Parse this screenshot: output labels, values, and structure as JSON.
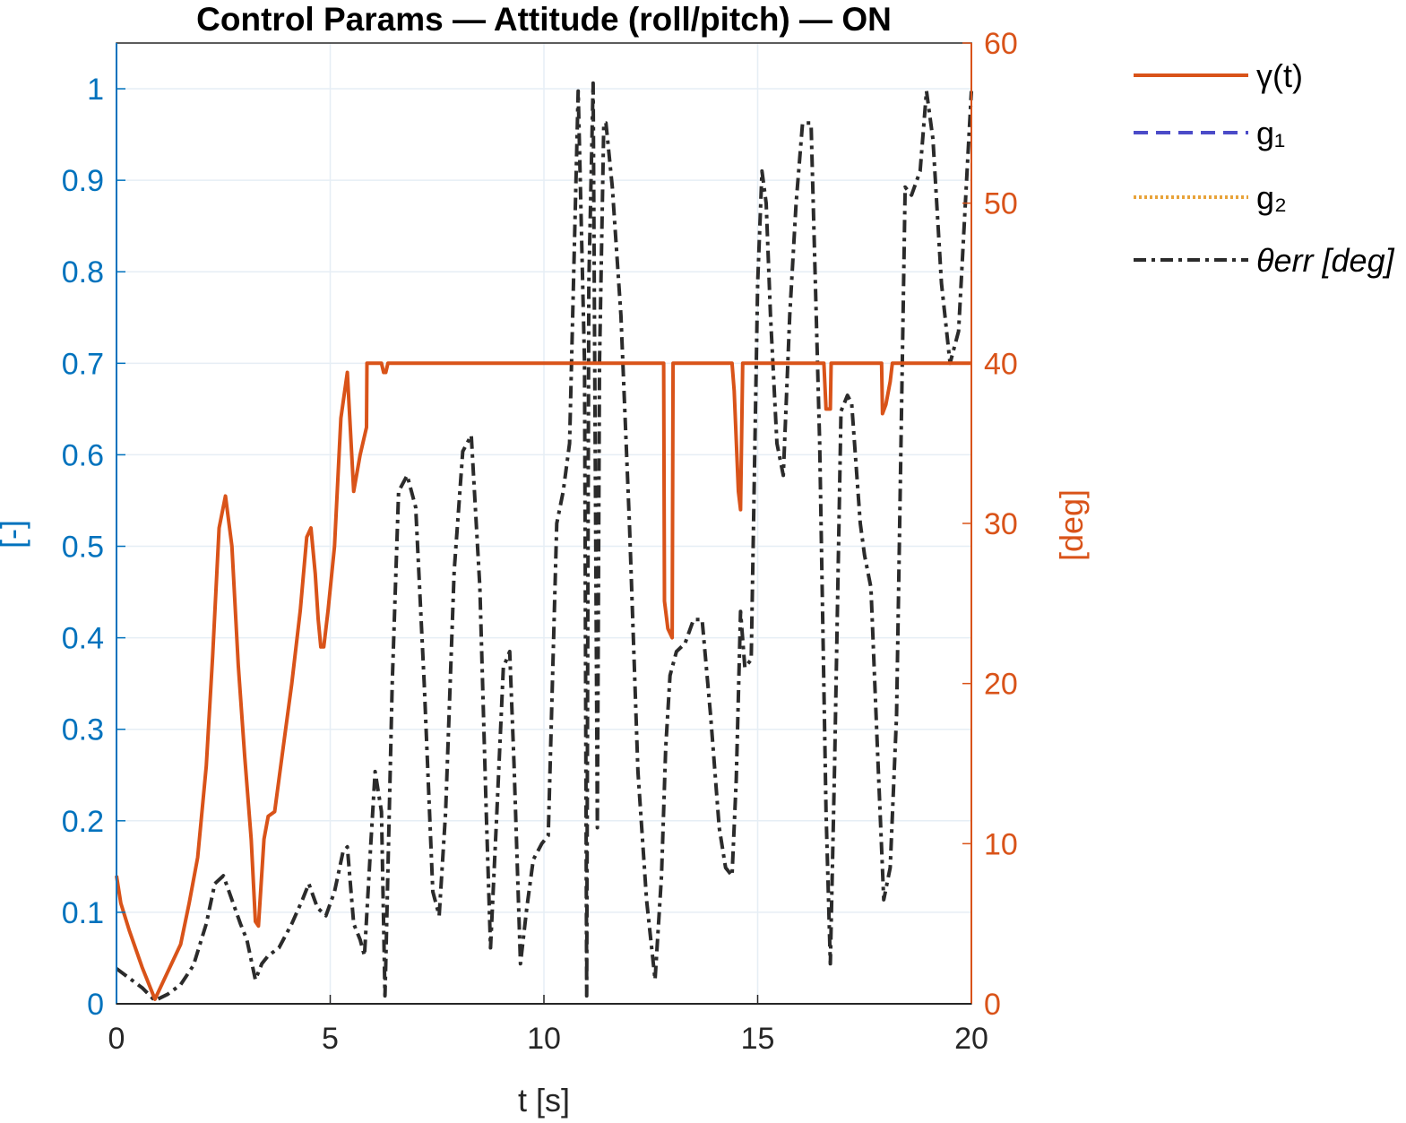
{
  "chart_data": {
    "type": "line",
    "title": "Control Params — Attitude (roll/pitch) — ON",
    "xlabel": "t [s]",
    "ylabel_left": "[-]",
    "ylabel_right": "[deg]",
    "xlim": [
      0,
      20
    ],
    "ylim_left": [
      0,
      1.05
    ],
    "ylim_right": [
      0,
      60
    ],
    "grid": true,
    "legend_position": "outside-right-top",
    "xticks": [
      "0",
      "5",
      "10",
      "15",
      "20"
    ],
    "yticks_left": [
      "0",
      "0.1",
      "0.2",
      "0.3",
      "0.4",
      "0.5",
      "0.6",
      "0.7",
      "0.8",
      "0.9",
      "1"
    ],
    "yticks_right": [
      "0",
      "10",
      "20",
      "30",
      "40",
      "50",
      "60"
    ],
    "colors": {
      "left_axis": "#0072BD",
      "right_axis": "#D95319",
      "gamma": "#D95319",
      "g1": "#4B4BC8",
      "g2": "#E8A33A",
      "theta": "#2B2B2B"
    },
    "series": [
      {
        "name": "γ(t)",
        "axis": "left",
        "style": "solid",
        "x": [
          0,
          0.1,
          0.3,
          0.6,
          0.9,
          1.2,
          1.5,
          1.7,
          1.9,
          2.1,
          2.25,
          2.4,
          2.55,
          2.7,
          2.85,
          3.0,
          3.15,
          3.25,
          3.32,
          3.45,
          3.55,
          3.7,
          3.9,
          4.1,
          4.3,
          4.45,
          4.55,
          4.65,
          4.72,
          4.78,
          4.85,
          4.95,
          5.1,
          5.25,
          5.4,
          5.55,
          5.7,
          5.85,
          5.86,
          6.0,
          6.02,
          6.1,
          6.2,
          6.25,
          6.3,
          6.35,
          12.8,
          12.82,
          12.9,
          13.0,
          13.02,
          13.08,
          13.1,
          14.4,
          14.45,
          14.55,
          14.6,
          14.65,
          16.55,
          16.6,
          16.7,
          16.72,
          17.9,
          17.92,
          18.0,
          18.1,
          18.15,
          20
        ],
        "values": [
          0.14,
          0.11,
          0.08,
          0.04,
          0.005,
          0.035,
          0.065,
          0.11,
          0.16,
          0.26,
          0.38,
          0.52,
          0.555,
          0.5,
          0.37,
          0.27,
          0.18,
          0.09,
          0.085,
          0.18,
          0.205,
          0.21,
          0.28,
          0.35,
          0.43,
          0.51,
          0.52,
          0.47,
          0.42,
          0.39,
          0.39,
          0.43,
          0.5,
          0.64,
          0.69,
          0.56,
          0.6,
          0.63,
          0.7,
          0.7,
          0.7,
          0.7,
          0.7,
          0.69,
          0.69,
          0.7,
          0.7,
          0.44,
          0.41,
          0.4,
          0.7,
          0.7,
          0.7,
          0.7,
          0.67,
          0.56,
          0.54,
          0.7,
          0.7,
          0.65,
          0.65,
          0.7,
          0.7,
          0.645,
          0.655,
          0.68,
          0.7,
          0.7
        ]
      },
      {
        "name": "g₁",
        "axis": "left",
        "style": "dashed",
        "x": [],
        "values": []
      },
      {
        "name": "g₂",
        "axis": "left",
        "style": "dotted",
        "x": [],
        "values": []
      },
      {
        "name": "θerr [deg]",
        "axis": "right",
        "style": "dashdot",
        "x": [
          0,
          0.3,
          0.6,
          0.9,
          1.2,
          1.5,
          1.8,
          2.1,
          2.3,
          2.5,
          2.7,
          2.9,
          3.05,
          3.25,
          3.4,
          3.55,
          3.8,
          4.1,
          4.35,
          4.5,
          4.7,
          4.9,
          5.1,
          5.3,
          5.4,
          5.55,
          5.7,
          5.8,
          5.95,
          6.05,
          6.2,
          6.28,
          6.3,
          6.45,
          6.6,
          6.8,
          7.0,
          7.2,
          7.4,
          7.55,
          7.7,
          7.9,
          8.1,
          8.3,
          8.5,
          8.65,
          8.75,
          8.9,
          9.05,
          9.2,
          9.3,
          9.45,
          9.6,
          9.75,
          9.95,
          10.1,
          10.3,
          10.45,
          10.6,
          10.8,
          10.95,
          11.0,
          11.05,
          11.15,
          11.25,
          11.3,
          11.4,
          11.45,
          11.6,
          11.8,
          12.0,
          12.2,
          12.4,
          12.6,
          12.75,
          12.85,
          12.95,
          13.1,
          13.3,
          13.5,
          13.7,
          13.9,
          14.1,
          14.25,
          14.4,
          14.5,
          14.6,
          14.7,
          14.85,
          15.0,
          15.1,
          15.2,
          15.3,
          15.45,
          15.6,
          15.75,
          15.9,
          16.05,
          16.25,
          16.45,
          16.6,
          16.7,
          16.8,
          16.95,
          17.1,
          17.2,
          17.4,
          17.5,
          17.65,
          17.8,
          17.95,
          18.1,
          18.25,
          18.45,
          18.6,
          18.8,
          18.95,
          19.1,
          19.3,
          19.5,
          19.7,
          19.9,
          20.0
        ],
        "values": [
          2.2,
          1.6,
          1.0,
          0.2,
          0.6,
          1.2,
          2.4,
          5.0,
          7.5,
          8.0,
          6.5,
          5.0,
          4.0,
          1.5,
          2.5,
          3.0,
          3.5,
          5.0,
          6.5,
          7.5,
          6.0,
          5.5,
          7.0,
          9.5,
          9.8,
          5.0,
          4.0,
          3.0,
          10.0,
          14.5,
          12.0,
          0.5,
          2.5,
          20.0,
          32.0,
          33.0,
          31.0,
          20.0,
          7.0,
          5.5,
          12.0,
          27.0,
          34.5,
          35.5,
          26.0,
          12.0,
          3.5,
          12.0,
          21.0,
          22.0,
          15.0,
          2.5,
          6.0,
          9.0,
          10.0,
          10.5,
          30.0,
          32.0,
          35.0,
          57.0,
          40.0,
          0.5,
          45.0,
          57.5,
          11.0,
          40.0,
          55.0,
          55.0,
          51.0,
          43.0,
          30.0,
          14.5,
          6.5,
          1.5,
          8.0,
          16.0,
          20.5,
          22.0,
          22.5,
          24.0,
          24.0,
          18.0,
          11.0,
          8.5,
          8.0,
          14.0,
          24.5,
          21.0,
          21.5,
          45.0,
          52.0,
          50.0,
          43.0,
          35.0,
          33.0,
          43.0,
          50.0,
          55.0,
          55.0,
          35.0,
          12.0,
          2.5,
          15.0,
          37.0,
          38.0,
          37.5,
          30.0,
          28.0,
          26.0,
          16.0,
          6.5,
          8.5,
          18.0,
          51.0,
          50.5,
          52.0,
          57.0,
          54.0,
          45.0,
          40.0,
          42.0,
          52.0,
          57.0
        ]
      }
    ]
  }
}
